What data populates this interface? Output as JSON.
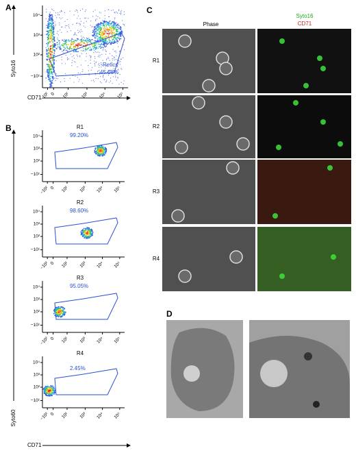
{
  "panels": {
    "a": {
      "label": "A",
      "y_axis": "Syto16",
      "x_axis": "CD71",
      "gate": "Retics",
      "gate_percent": "45.08%"
    },
    "b": {
      "label": "B",
      "y_axis": "Syto60",
      "x_axis": "CD71",
      "plots": [
        {
          "name": "R1",
          "percent": "99.20%"
        },
        {
          "name": "R2",
          "percent": "98.60%"
        },
        {
          "name": "R3",
          "percent": "95.05%"
        },
        {
          "name": "R4",
          "percent": "2.45%"
        }
      ]
    },
    "c": {
      "label": "C",
      "phase_header": "Phase",
      "stain_1": "Syto16",
      "stain_2": "CD71",
      "rows": [
        "R1",
        "R2",
        "R3",
        "R4"
      ]
    },
    "d": {
      "label": "D"
    }
  },
  "axis_ticks": {
    "y": [
      "10⁴",
      "10³",
      "10²",
      "−10¹"
    ],
    "x": [
      "−10²",
      "0",
      "10²",
      "10³",
      "10⁴",
      "10⁵"
    ]
  }
}
